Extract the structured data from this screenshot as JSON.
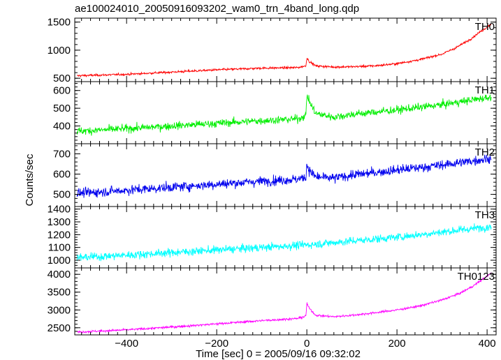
{
  "title": "ae100024010_20050916093202_wam0_trn_4band_long.qdp",
  "xlabel": "Time [sec] 0 = 2005/09/16 09:32:02",
  "ylabel": "Counts/sec",
  "chart_data": {
    "type": "line",
    "title": "ae100024010_20050916093202_wam0_trn_4band_long.qdp",
    "xlabel": "Time [sec] 0 = 2005/09/16 09:32:02",
    "ylabel": "Counts/sec",
    "xlim": [
      -515,
      420
    ],
    "xticks": [
      -400,
      -200,
      0,
      200,
      400
    ],
    "x_tick_labels": [
      "−400",
      "−200",
      "0",
      "200",
      "400"
    ],
    "legend": "none; each panel labelled in its top-right corner",
    "panels": [
      {
        "name": "TH0",
        "color": "#ff0000",
        "ylim": [
          440,
          1570
        ],
        "yticks": [
          500,
          1000,
          1500
        ],
        "x": [
          -510,
          -400,
          -300,
          -200,
          -100,
          -20,
          -2,
          0,
          5,
          20,
          60,
          100,
          150,
          200,
          250,
          300,
          330,
          360,
          380,
          400,
          410
        ],
        "y": [
          545,
          570,
          610,
          650,
          680,
          690,
          720,
          870,
          800,
          720,
          700,
          705,
          720,
          760,
          830,
          930,
          1040,
          1180,
          1300,
          1410,
          1470
        ],
        "noise": 25
      },
      {
        "name": "TH1",
        "color": "#00ee00",
        "ylim": [
          300,
          650
        ],
        "yticks": [
          400,
          500,
          600
        ],
        "x": [
          -510,
          -400,
          -300,
          -200,
          -100,
          -20,
          -2,
          0,
          5,
          20,
          60,
          100,
          200,
          300,
          400,
          410
        ],
        "y": [
          370,
          385,
          400,
          415,
          430,
          440,
          460,
          580,
          540,
          470,
          450,
          465,
          490,
          520,
          560,
          565
        ],
        "noise": 28
      },
      {
        "name": "TH2",
        "color": "#0000ee",
        "ylim": [
          440,
          750
        ],
        "yticks": [
          500,
          600,
          700
        ],
        "x": [
          -510,
          -400,
          -300,
          -200,
          -100,
          -20,
          -2,
          0,
          5,
          20,
          60,
          100,
          200,
          300,
          400,
          410
        ],
        "y": [
          505,
          520,
          535,
          550,
          565,
          575,
          585,
          650,
          620,
          585,
          580,
          595,
          620,
          645,
          675,
          680
        ],
        "noise": 30
      },
      {
        "name": "TH3",
        "color": "#00ffff",
        "ylim": [
          940,
          1420
        ],
        "yticks": [
          1000,
          1100,
          1200,
          1300,
          1400
        ],
        "x": [
          -510,
          -400,
          -300,
          -200,
          -100,
          0,
          100,
          200,
          300,
          400,
          410
        ],
        "y": [
          1020,
          1040,
          1060,
          1080,
          1100,
          1120,
          1150,
          1180,
          1220,
          1260,
          1270
        ],
        "noise": 40
      },
      {
        "name": "TH0123",
        "color": "#ff00ff",
        "ylim": [
          2300,
          4180
        ],
        "yticks": [
          2500,
          3000,
          3500,
          4000
        ],
        "x": [
          -510,
          -400,
          -300,
          -200,
          -100,
          -20,
          -2,
          0,
          5,
          20,
          60,
          100,
          150,
          200,
          250,
          300,
          340,
          370,
          400,
          410
        ],
        "y": [
          2380,
          2440,
          2520,
          2610,
          2700,
          2760,
          2830,
          3200,
          3050,
          2850,
          2810,
          2850,
          2920,
          3000,
          3110,
          3280,
          3470,
          3680,
          3950,
          4040
        ],
        "noise": 40
      }
    ]
  }
}
